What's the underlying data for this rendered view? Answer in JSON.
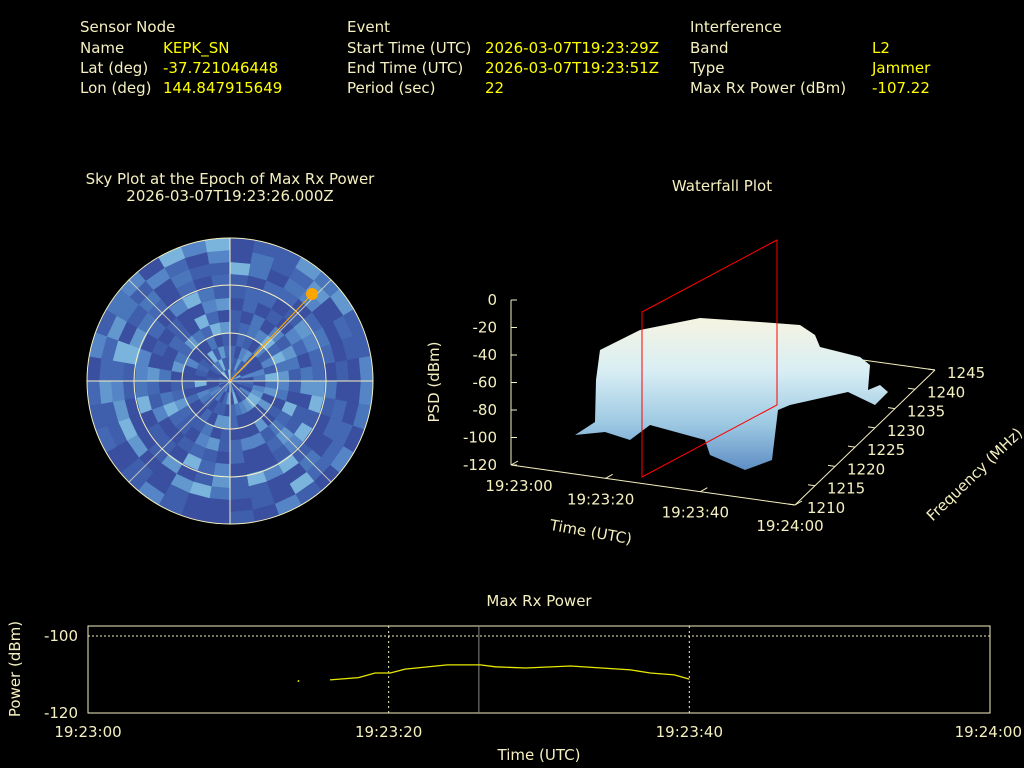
{
  "sensor": {
    "heading": "Sensor Node",
    "name_label": "Name",
    "name": "KEPK_SN",
    "lat_label": "Lat (deg)",
    "lat": "-37.721046448",
    "lon_label": "Lon (deg)",
    "lon": "144.847915649"
  },
  "event": {
    "heading": "Event",
    "start_label": "Start Time (UTC)",
    "start": "2026-03-07T19:23:29Z",
    "end_label": "End Time (UTC)",
    "end": "2026-03-07T19:23:51Z",
    "period_label": "Period (sec)",
    "period": "22"
  },
  "interference": {
    "heading": "Interference",
    "band_label": "Band",
    "band": "L2",
    "type_label": "Type",
    "type": "Jammer",
    "power_label": "Max Rx Power (dBm)",
    "power": "-107.22"
  },
  "colors": {
    "label": "#f5f0c0",
    "value": "#ffff00",
    "marker": "#ffa500",
    "epoch": "#ff0000",
    "sky_dark": "#3a4fa0",
    "sky_light": "#7ab4dc"
  },
  "chart_data": [
    {
      "type": "polar-heatmap",
      "title": "Sky Plot at the Epoch of Max Rx Power",
      "subtitle": "2026-03-07T19:23:26.000Z",
      "marker": {
        "azimuth_deg": 45,
        "elevation_ring": "outer"
      }
    },
    {
      "type": "surface",
      "title": "Waterfall Plot",
      "zlabel": "PSD (dBm)",
      "zticks": [
        "0",
        "-20",
        "-40",
        "-60",
        "-80",
        "-100",
        "-120"
      ],
      "xlabel": "Time (UTC)",
      "xticks": [
        "19:23:00",
        "19:23:20",
        "19:23:40",
        "19:24:00"
      ],
      "ylabel": "Frequency (MHz)",
      "yticks": [
        "1210",
        "1215",
        "1220",
        "1225",
        "1230",
        "1235",
        "1240",
        "1245"
      ],
      "epoch_marker": "19:23:26"
    },
    {
      "type": "line",
      "title": "Max Rx Power",
      "xlabel": "Time (UTC)",
      "ylabel": "Power (dBm)",
      "xticks": [
        "19:23:00",
        "19:23:20",
        "19:23:40",
        "19:24:00"
      ],
      "yticks": [
        "-100",
        "-120"
      ],
      "xlim_sec": [
        0,
        60
      ],
      "ylim": [
        -120,
        -97
      ],
      "grid": true,
      "epoch_marker_sec": 26,
      "series": [
        {
          "x_sec": [
            14,
            16.1,
            18,
            19.1,
            20.1,
            21.1,
            23.9,
            26.1,
            27.1,
            29.1,
            32.1,
            36.1,
            37.4,
            39.0,
            40.0
          ],
          "y": [
            -111.7,
            -111.4,
            -110.8,
            -109.6,
            -109.6,
            -108.6,
            -107.5,
            -107.5,
            -108.0,
            -108.3,
            -107.8,
            -108.8,
            -109.6,
            -110.1,
            -111.2
          ]
        }
      ]
    }
  ]
}
